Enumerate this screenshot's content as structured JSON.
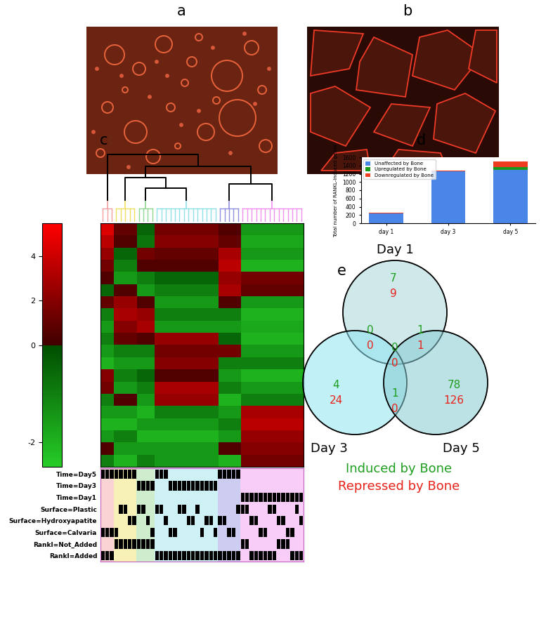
{
  "chart_data": [
    {
      "type": "image",
      "panel_label": "a"
    },
    {
      "type": "image",
      "panel_label": "b"
    },
    {
      "type": "heatmap",
      "panel_label": "c",
      "cells": [
        [
          4.5,
          1.0,
          -0.5,
          1.5,
          0.5,
          -1.5
        ],
        [
          3.5,
          0.5,
          -0.8,
          2.0,
          1.0,
          -1.8
        ],
        [
          2.5,
          -0.5,
          1.5,
          1.0,
          3.0,
          -1.5
        ],
        [
          1.5,
          -1.0,
          0.5,
          0.5,
          3.5,
          -2.0
        ],
        [
          0.5,
          -1.5,
          -1.0,
          -0.5,
          2.5,
          1.5
        ],
        [
          -0.5,
          0.5,
          -1.5,
          -1.0,
          3.0,
          1.0
        ],
        [
          1.0,
          2.5,
          0.5,
          -1.5,
          0.5,
          -1.5
        ],
        [
          -1.0,
          3.0,
          2.5,
          -1.0,
          -1.0,
          -2.0
        ],
        [
          -1.5,
          2.0,
          3.0,
          -1.5,
          -1.5,
          -1.8
        ],
        [
          -1.0,
          1.0,
          0.5,
          2.5,
          -0.5,
          -2.0
        ],
        [
          -1.5,
          -1.0,
          -1.0,
          1.5,
          1.5,
          -1.5
        ],
        [
          -2.0,
          -1.5,
          -1.5,
          2.0,
          -1.0,
          -1.0
        ],
        [
          2.0,
          -1.0,
          -0.5,
          0.5,
          -1.5,
          -2.0
        ],
        [
          1.5,
          -1.5,
          -1.0,
          3.0,
          -1.0,
          -1.5
        ],
        [
          -1.0,
          0.5,
          -1.5,
          2.5,
          -2.0,
          -1.0
        ],
        [
          -1.5,
          -1.5,
          -2.0,
          -1.0,
          -1.5,
          3.0
        ],
        [
          -2.0,
          -2.0,
          -1.5,
          -1.5,
          -1.0,
          3.5
        ],
        [
          -1.5,
          -1.0,
          -2.0,
          -2.0,
          -1.5,
          2.5
        ],
        [
          0.5,
          -1.5,
          -1.5,
          -1.5,
          0.5,
          2.0
        ],
        [
          -1.0,
          -2.0,
          -1.0,
          -1.5,
          -2.0,
          1.5
        ]
      ],
      "column_groups": {
        "sizes": [
          3,
          5,
          4,
          14,
          5,
          14
        ],
        "colors": [
          "#f4a0a0",
          "#f0e060",
          "#90d890",
          "#90e0e8",
          "#9090e0",
          "#f090f0"
        ]
      },
      "colorbar": {
        "lim": [
          -2.5,
          5.5
        ],
        "ticks": [
          4,
          2,
          0,
          -2
        ]
      },
      "annotation": {
        "rows": [
          "Time=Day5",
          "Time=Day3",
          "Time=Day1",
          "Surface=Plastic",
          "Surface=Hydroxyapatite",
          "Surface=Calvaria",
          "Rankl=Not_Added",
          "Rankl=Added"
        ],
        "cells": [
          [
            1,
            1,
            1,
            1,
            1,
            1,
            1,
            1,
            0,
            0,
            0,
            0,
            1,
            1,
            1,
            0,
            0,
            0,
            0,
            0,
            0,
            0,
            0,
            0,
            0,
            0,
            1,
            1,
            1,
            1,
            1,
            0,
            0,
            0,
            0,
            0,
            0,
            0,
            0,
            0,
            0,
            0,
            0,
            0,
            0
          ],
          [
            0,
            0,
            0,
            0,
            0,
            0,
            0,
            0,
            1,
            1,
            1,
            1,
            0,
            0,
            0,
            1,
            1,
            1,
            1,
            1,
            1,
            1,
            1,
            1,
            1,
            1,
            0,
            0,
            0,
            0,
            0,
            0,
            0,
            0,
            0,
            0,
            0,
            0,
            0,
            0,
            0,
            0,
            0,
            0,
            0
          ],
          [
            0,
            0,
            0,
            0,
            0,
            0,
            0,
            0,
            0,
            0,
            0,
            0,
            0,
            0,
            0,
            0,
            0,
            0,
            0,
            0,
            0,
            0,
            0,
            0,
            0,
            0,
            0,
            0,
            0,
            0,
            0,
            1,
            1,
            1,
            1,
            1,
            1,
            1,
            1,
            1,
            1,
            1,
            1,
            1,
            1
          ],
          [
            0,
            0,
            0,
            0,
            1,
            1,
            0,
            0,
            1,
            1,
            0,
            0,
            1,
            1,
            0,
            0,
            0,
            1,
            1,
            0,
            0,
            1,
            0,
            0,
            0,
            0,
            0,
            0,
            0,
            0,
            1,
            1,
            1,
            0,
            0,
            0,
            0,
            1,
            1,
            0,
            0,
            0,
            0,
            1,
            0
          ],
          [
            0,
            0,
            0,
            0,
            0,
            0,
            1,
            1,
            0,
            0,
            1,
            0,
            0,
            0,
            1,
            0,
            0,
            0,
            0,
            1,
            1,
            0,
            0,
            1,
            1,
            0,
            1,
            1,
            0,
            0,
            0,
            0,
            0,
            1,
            1,
            0,
            0,
            0,
            0,
            1,
            1,
            0,
            0,
            0,
            1
          ],
          [
            1,
            1,
            1,
            1,
            0,
            0,
            0,
            0,
            0,
            0,
            0,
            1,
            0,
            0,
            0,
            1,
            1,
            0,
            0,
            0,
            0,
            0,
            1,
            0,
            0,
            1,
            0,
            0,
            1,
            1,
            0,
            0,
            0,
            0,
            0,
            1,
            1,
            0,
            0,
            0,
            0,
            1,
            1,
            0,
            0
          ],
          [
            0,
            0,
            0,
            1,
            1,
            1,
            1,
            1,
            1,
            1,
            1,
            1,
            0,
            0,
            0,
            0,
            0,
            0,
            0,
            0,
            0,
            0,
            0,
            0,
            0,
            0,
            0,
            0,
            0,
            0,
            0,
            1,
            1,
            0,
            0,
            0,
            0,
            0,
            0,
            1,
            1,
            1,
            0,
            0,
            0
          ],
          [
            1,
            1,
            1,
            0,
            0,
            0,
            0,
            0,
            0,
            0,
            0,
            0,
            1,
            1,
            1,
            1,
            1,
            1,
            1,
            1,
            1,
            1,
            1,
            1,
            1,
            1,
            1,
            1,
            1,
            1,
            1,
            0,
            0,
            1,
            1,
            1,
            1,
            1,
            1,
            0,
            0,
            0,
            1,
            1,
            1
          ]
        ]
      }
    },
    {
      "type": "bar",
      "panel_label": "d",
      "stacked": true,
      "legend": "upper left",
      "ylabel": "Total number of RANKL-induced genes",
      "categories": [
        "day 1",
        "day 3",
        "day 5"
      ],
      "series": [
        {
          "name": "Unaffected by Bone",
          "color": "#4a86e8",
          "values": [
            232,
            1252,
            1286
          ]
        },
        {
          "name": "Upregulated by Bone",
          "color": "#1a9a1a",
          "values": [
            8,
            5,
            80
          ]
        },
        {
          "name": "Downregulated by Bone",
          "color": "#f03c1e",
          "values": [
            10,
            24,
            127
          ]
        }
      ],
      "ylim": [
        0,
        1600
      ],
      "yticks": [
        0,
        200,
        400,
        600,
        800,
        1000,
        1200,
        1400,
        1600
      ],
      "grid": false
    },
    {
      "type": "venn",
      "panel_label": "e",
      "sets": [
        "Day 1",
        "Day 3",
        "Day 5"
      ],
      "series": [
        {
          "name": "Induced by Bone",
          "color": "#1e9e1e"
        },
        {
          "name": "Repressed by Bone",
          "color": "#e8221b"
        }
      ],
      "regions": [
        {
          "sets": [
            "Day 1"
          ],
          "values": [
            7,
            9
          ]
        },
        {
          "sets": [
            "Day 3"
          ],
          "values": [
            4,
            24
          ]
        },
        {
          "sets": [
            "Day 5"
          ],
          "values": [
            78,
            126
          ]
        },
        {
          "sets": [
            "Day 1",
            "Day 3"
          ],
          "values": [
            0,
            0
          ]
        },
        {
          "sets": [
            "Day 1",
            "Day 5"
          ],
          "values": [
            1,
            1
          ]
        },
        {
          "sets": [
            "Day 3",
            "Day 5"
          ],
          "values": [
            1,
            0
          ]
        },
        {
          "sets": [
            "Day 1",
            "Day 3",
            "Day 5"
          ],
          "values": [
            0,
            0
          ]
        }
      ]
    }
  ]
}
